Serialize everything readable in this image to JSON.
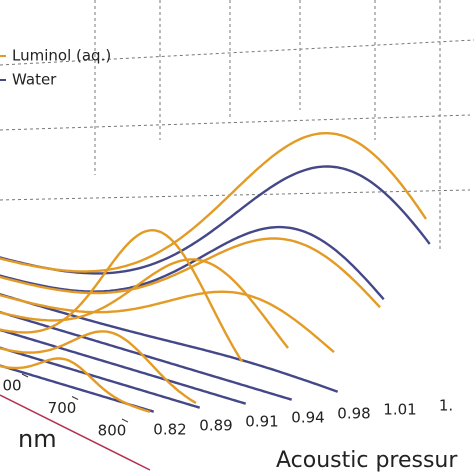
{
  "chart_data": {
    "type": "waterfall3d",
    "x_label": "nm",
    "z_label": "Acoustic pressur",
    "categories": [
      "0.82",
      "0.89",
      "0.91",
      "0.94",
      "0.98",
      "1.01",
      "1."
    ],
    "series": [
      {
        "name": "Luminol (aq.)",
        "color": "#e39b25",
        "values": [
          0.12,
          0.22,
          0.65,
          0.5,
          0.33,
          0.55,
          1.0
        ]
      },
      {
        "name": "Water",
        "color": "#454888",
        "values": [
          0,
          0,
          0,
          0,
          0.03,
          0.6,
          0.85
        ]
      }
    ],
    "xlim": [
      450,
      800
    ],
    "xticks": [
      {
        "value": 600,
        "label": "00"
      },
      700,
      800
    ],
    "ylim": [
      0,
      1.1
    ],
    "grid": true
  }
}
